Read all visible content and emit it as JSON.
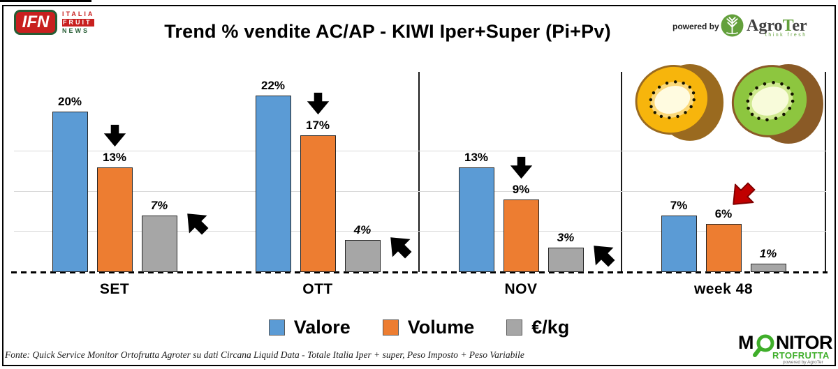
{
  "header": {
    "ifn_logo": {
      "abbr": "IFN",
      "italia": "ITALIA",
      "fruit": "FRUIT",
      "news": "NEWS"
    },
    "title": "Trend % vendite AC/AP - KIWI  Iper+Super (Pi+Pv)",
    "powered_by_label": "powered by",
    "agroter_logo": {
      "agro": "Agro",
      "t": "T",
      "er": "er",
      "tagline": "think fresh"
    }
  },
  "chart_data": {
    "type": "bar",
    "title": "Trend % vendite AC/AP - KIWI  Iper+Super (Pi+Pv)",
    "categories": [
      "SET",
      "OTT",
      "NOV",
      "week 48"
    ],
    "series": [
      {
        "name": "Valore",
        "color": "#5b9bd5",
        "values": [
          20,
          22,
          13,
          7
        ],
        "italic_labels": false
      },
      {
        "name": "Volume",
        "color": "#ed7d31",
        "values": [
          13,
          17,
          9,
          6
        ],
        "italic_labels": false
      },
      {
        "name": "€/kg",
        "color": "#a6a6a6",
        "values": [
          7,
          4,
          3,
          1
        ],
        "italic_labels": true
      }
    ],
    "value_suffix": "%",
    "ylim": [
      0,
      25
    ],
    "gridlines_pct": [
      5,
      10,
      15
    ],
    "grid": true,
    "legend_position": "bottom",
    "arrows": [
      {
        "group": 0,
        "series": 1,
        "dir": "down",
        "color": "#000000"
      },
      {
        "group": 0,
        "series": 2,
        "dir": "up-left",
        "color": "#000000"
      },
      {
        "group": 1,
        "series": 1,
        "dir": "down",
        "color": "#000000"
      },
      {
        "group": 1,
        "series": 2,
        "dir": "up-left",
        "color": "#000000"
      },
      {
        "group": 2,
        "series": 1,
        "dir": "down",
        "color": "#000000"
      },
      {
        "group": 2,
        "series": 2,
        "dir": "up-left",
        "color": "#000000"
      },
      {
        "group": 3,
        "series": 1,
        "dir": "down-left",
        "color": "#c00000"
      }
    ]
  },
  "legend": [
    {
      "label": "Valore",
      "color": "#5b9bd5"
    },
    {
      "label": "Volume",
      "color": "#ed7d31"
    },
    {
      "label": "€/kg",
      "color": "#a6a6a6"
    }
  ],
  "footer": {
    "source": "Fonte: Quick Service Monitor Ortofrutta Agroter su dati Circana Liquid Data - Totale Italia Iper + super, Peso Imposto + Peso Variabile"
  },
  "monitor_logo": {
    "m": "M",
    "nitor": "NITOR",
    "rtofrutta": "RTOFRUTTA",
    "powered": "powered by AgroTer"
  }
}
